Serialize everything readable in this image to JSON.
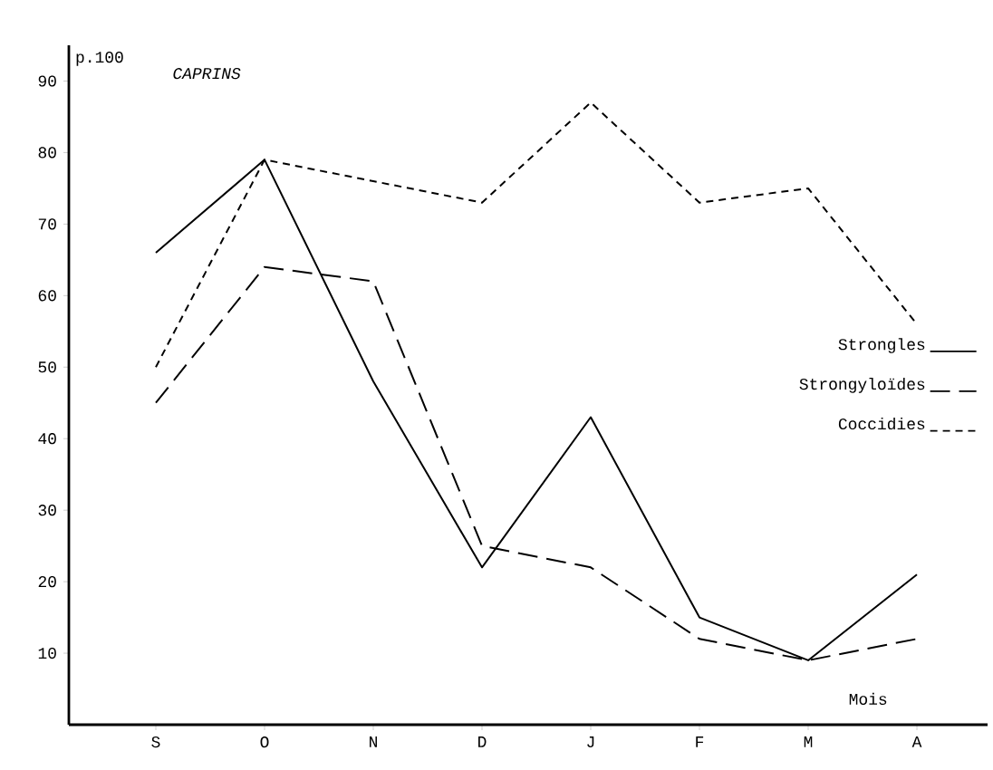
{
  "chart_data": {
    "type": "line",
    "title": "CAPRINS",
    "xlabel": "Mois",
    "ylabel": "p.100",
    "categories": [
      "S",
      "O",
      "N",
      "D",
      "J",
      "F",
      "M",
      "A"
    ],
    "series": [
      {
        "name": "Strongles",
        "color": "#000000",
        "line_style": "solid",
        "values": [
          66,
          79,
          48,
          22,
          43,
          15,
          9,
          21
        ]
      },
      {
        "name": "Strongyloïdes",
        "color": "#000000",
        "line_style": "long dashed",
        "values": [
          45,
          64,
          62,
          25,
          22,
          12,
          9,
          12
        ]
      },
      {
        "name": "Coccidies",
        "color": "#000000",
        "line_style": "dashed",
        "values": [
          50,
          79,
          76,
          73,
          87,
          73,
          75,
          56
        ]
      }
    ],
    "ylim": [
      0,
      95
    ],
    "yticks": [
      10,
      20,
      30,
      40,
      50,
      60,
      70,
      80,
      90
    ],
    "grid": false,
    "legend": "right"
  }
}
